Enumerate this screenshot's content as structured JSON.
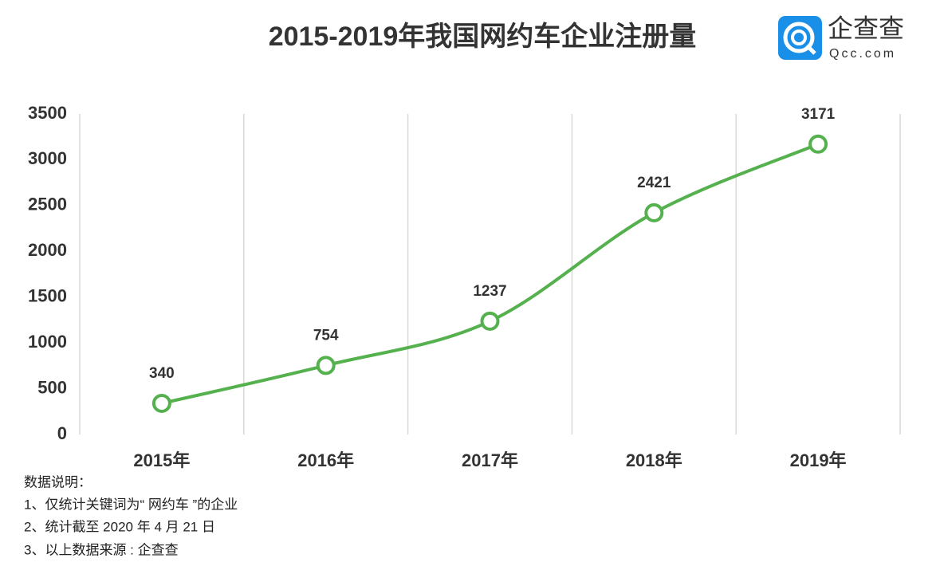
{
  "chart_data": {
    "type": "line",
    "title": "2015-2019年我国网约车企业注册量",
    "categories": [
      "2015年",
      "2016年",
      "2017年",
      "2018年",
      "2019年"
    ],
    "values": [
      340,
      754,
      1237,
      2421,
      3171
    ],
    "color": "#54b14d",
    "ylim": [
      0,
      3500
    ],
    "yticks": [
      0,
      500,
      1000,
      1500,
      2000,
      2500,
      3000,
      3500
    ],
    "grid": true
  },
  "logo": {
    "name": "企查查",
    "url": "Qcc.com"
  },
  "notes": [
    "数据说明：",
    "1、仅统计关键词为“ 网约车 ”的企业",
    "2、统计截至 2020 年 4 月 21 日",
    "3、以上数据来源 : 企查查"
  ]
}
